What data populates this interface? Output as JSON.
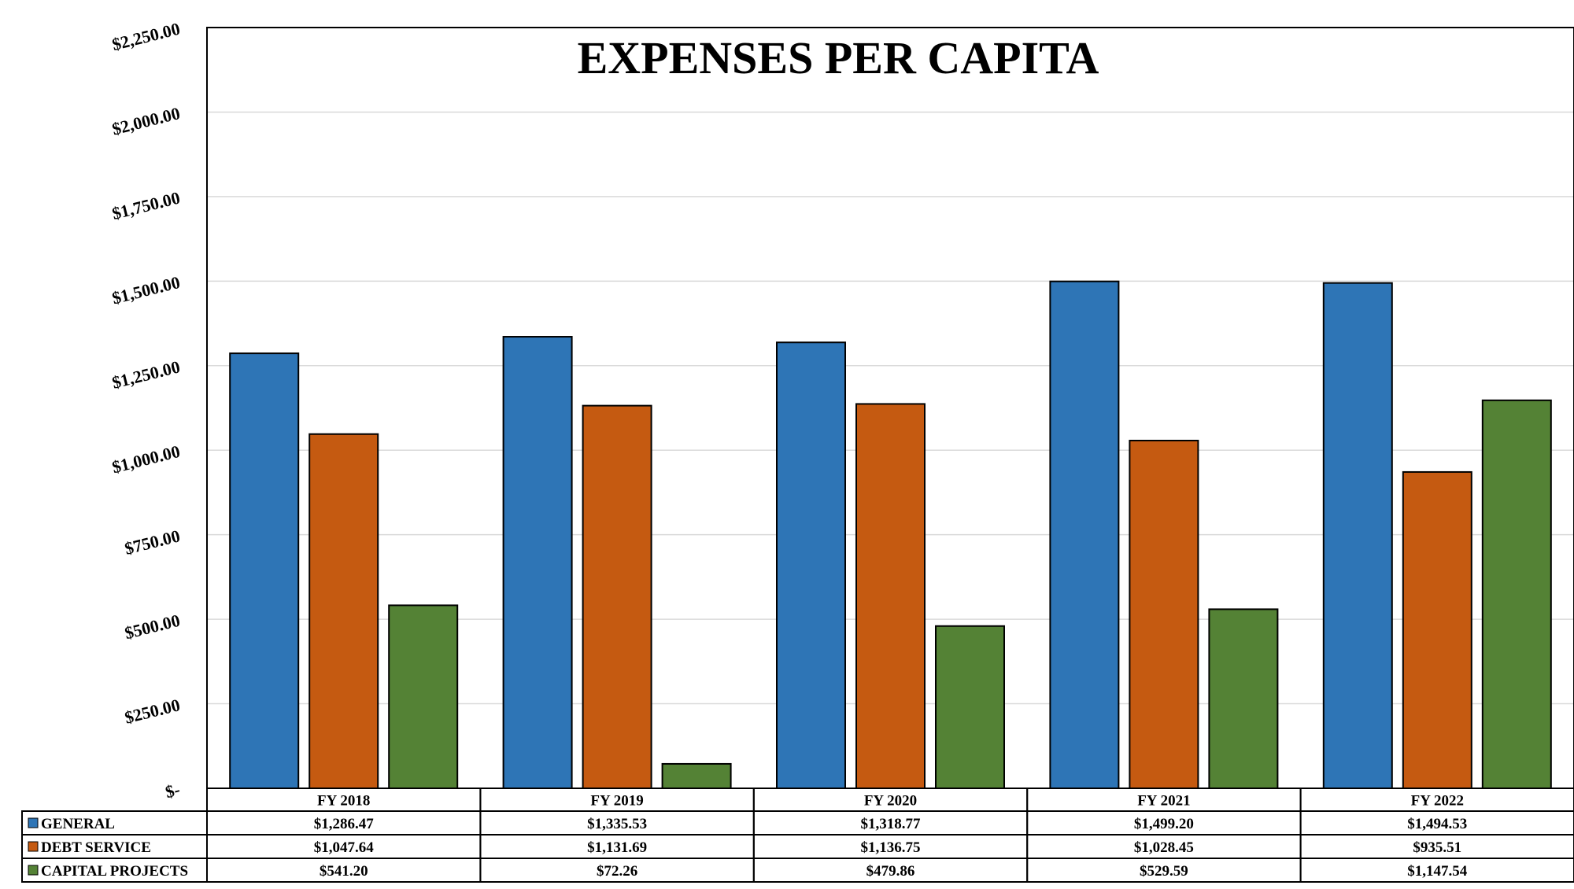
{
  "chart_data": {
    "type": "bar",
    "title": "EXPENSES PER CAPITA",
    "xlabel": "",
    "ylabel": "",
    "categories": [
      "FY 2018",
      "FY 2019",
      "FY 2020",
      "FY 2021",
      "FY 2022"
    ],
    "ylim": [
      0,
      2250
    ],
    "yticks": [
      0,
      250,
      500,
      750,
      1000,
      1250,
      1500,
      1750,
      2000,
      2250
    ],
    "ytick_labels": [
      "$-",
      "$250.00",
      "$500.00",
      "$750.00",
      "$1,000.00",
      "$1,250.00",
      "$1,500.00",
      "$1,750.00",
      "$2,000.00",
      "$2,250.00"
    ],
    "grid": true,
    "legend": "data-table",
    "series": [
      {
        "name": "GENERAL",
        "color": "#2E75B6",
        "values": [
          1286.47,
          1335.53,
          1318.77,
          1499.2,
          1494.53
        ],
        "labels": [
          "$1,286.47",
          "$1,335.53",
          "$1,318.77",
          "$1,499.20",
          "$1,494.53"
        ]
      },
      {
        "name": "DEBT SERVICE",
        "color": "#C55A11",
        "values": [
          1047.64,
          1131.69,
          1136.75,
          1028.45,
          935.51
        ],
        "labels": [
          "$1,047.64",
          "$1,131.69",
          "$1,136.75",
          "$1,028.45",
          "$935.51"
        ]
      },
      {
        "name": "CAPITAL PROJECTS",
        "color": "#548235",
        "values": [
          541.2,
          72.26,
          479.86,
          529.59,
          1147.54
        ],
        "labels": [
          "$541.20",
          "$72.26",
          "$479.86",
          "$529.59",
          "$1,147.54"
        ]
      }
    ]
  }
}
